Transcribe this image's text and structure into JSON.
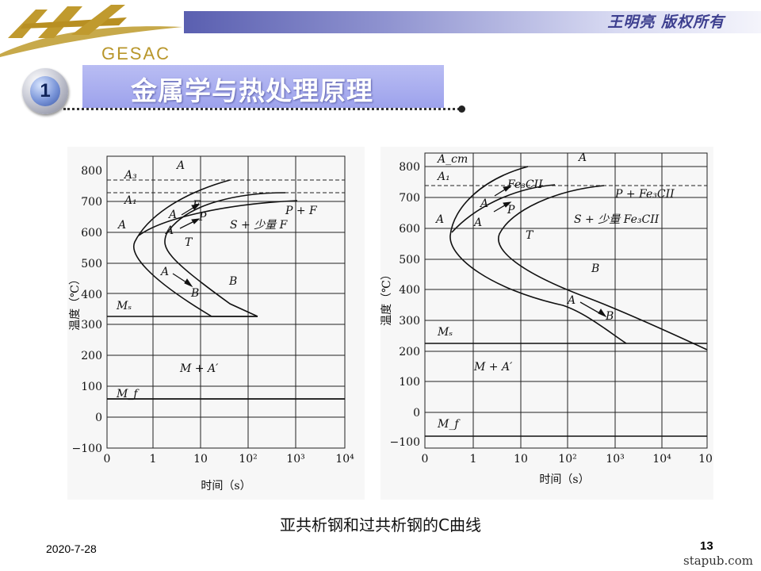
{
  "header": {
    "logo_text": "GESAC",
    "copyright": "王明亮 版权所有"
  },
  "section": {
    "number": "1",
    "title": "金属学与热处理原理"
  },
  "charts": {
    "left": {
      "y_ticks": [
        "800",
        "700",
        "600",
        "500",
        "400",
        "300",
        "200",
        "100",
        "0",
        "−100"
      ],
      "x_ticks": [
        "0",
        "1",
        "10",
        "10²",
        "10³",
        "10⁴"
      ],
      "x_label": "时间（s）",
      "y_label": "温度（℃）",
      "labels": {
        "A3": "A₃",
        "A1": "A₁",
        "A_top": "A",
        "AF": "A",
        "F": "F",
        "AP": "A",
        "P": "P",
        "PF": "P + F",
        "A_left": "A",
        "S": "S + 少量 F",
        "T": "T",
        "AB": "A",
        "B_arrow": "B",
        "B": "B",
        "Ms": "Mₛ",
        "MA": "M + A′",
        "Mf": "M_f"
      }
    },
    "right": {
      "y_ticks": [
        "800",
        "700",
        "600",
        "500",
        "400",
        "300",
        "200",
        "100",
        "0",
        "−100"
      ],
      "x_ticks": [
        "0",
        "1",
        "10",
        "10²",
        "10³",
        "10⁴",
        "10"
      ],
      "x_label": "时间（s）",
      "y_label": "温度（℃）",
      "labels": {
        "Acm": "A_cm",
        "A1": "A₁",
        "A_top": "A",
        "AFe": "A",
        "FeC": "Fe₃CII",
        "AP": "A",
        "P": "P",
        "PFe": "P + Fe₃CII",
        "A_left": "A",
        "S": "S + 少量 Fe₃CII",
        "T": "T",
        "B": "B",
        "AB": "A",
        "B_arrow": "B",
        "Ms": "Mₛ",
        "MA": "M + A′",
        "Mf": "M_f"
      }
    }
  },
  "caption": "亚共析钢和过共析钢的C曲线",
  "footer": {
    "date": "2020-7-28",
    "page": "13",
    "watermark": "stapub.com"
  }
}
